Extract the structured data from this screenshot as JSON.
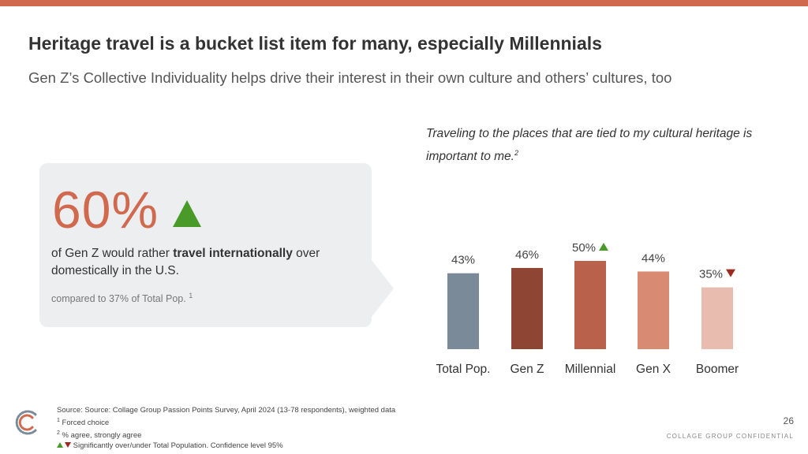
{
  "header": {
    "title": "Heritage travel is a bucket list item for many, especially Millennials",
    "subtitle": "Gen Z’s Collective Individuality helps drive their interest in their own culture and others’ cultures, too"
  },
  "callout": {
    "stat": "60%",
    "stat_significance": "over",
    "text_before": "of Gen Z would rather ",
    "text_bold": "travel internationally",
    "text_after": " over domestically in the U.S.",
    "note": "compared to 37% of Total Pop.",
    "note_footnote": "1"
  },
  "question": {
    "text": "Traveling to the places that are tied to my cultural heritage is important to me.",
    "footnote": "2"
  },
  "chart_data": {
    "type": "bar",
    "categories": [
      "Total Pop.",
      "Gen Z",
      "Millennial",
      "Gen X",
      "Boomer"
    ],
    "values": [
      43,
      46,
      50,
      44,
      35
    ],
    "value_labels": [
      "43%",
      "46%",
      "50%",
      "44%",
      "35%"
    ],
    "significance": [
      "",
      "",
      "up",
      "",
      "down"
    ],
    "colors": [
      "#7a8a99",
      "#8e4533",
      "#b9614a",
      "#d88b72",
      "#e8bcae"
    ],
    "ylim": [
      0,
      50
    ],
    "grid": false,
    "legend": "none"
  },
  "footer": {
    "source": "Source: Source: Collage Group Passion Points Survey, April 2024 (13-78 respondents), weighted data",
    "note1_mark": "1",
    "note1": "Forced choice",
    "note2_mark": "2",
    "note2": "% agree, strongly agree",
    "sig_note": "Significantly over/under Total Population. Confidence level 95%",
    "page_number": "26",
    "confidential": "COLLAGE GROUP CONFIDENTIAL"
  },
  "colors": {
    "accent": "#d0694d",
    "up": "#4a9a2a",
    "down": "#9c2a1e",
    "callout_bg": "#eceef0"
  }
}
